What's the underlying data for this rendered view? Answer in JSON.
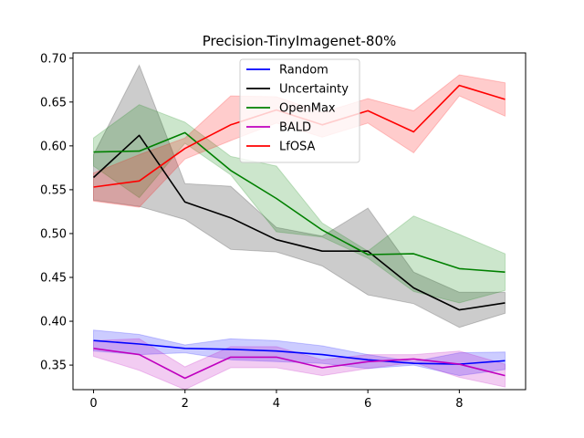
{
  "chart_data": {
    "type": "line",
    "title": "Precision-TinyImagenet-80%",
    "xlabel": "",
    "ylabel": "",
    "x": [
      0,
      1,
      2,
      3,
      4,
      5,
      6,
      7,
      8,
      9
    ],
    "xlim": [
      -0.45,
      9.45
    ],
    "ylim": [
      0.322,
      0.706
    ],
    "xticks": [
      0,
      2,
      4,
      6,
      8
    ],
    "yticks": [
      0.35,
      0.4,
      0.45,
      0.5,
      0.55,
      0.6,
      0.65,
      0.7
    ],
    "grid": false,
    "legend_position": "top-center",
    "series": [
      {
        "name": "Random",
        "color": "#0000ff",
        "values": [
          0.378,
          0.374,
          0.369,
          0.368,
          0.366,
          0.362,
          0.356,
          0.352,
          0.351,
          0.355
        ],
        "lower": [
          0.366,
          0.362,
          0.364,
          0.356,
          0.354,
          0.352,
          0.346,
          0.35,
          0.338,
          0.345
        ],
        "upper": [
          0.39,
          0.385,
          0.373,
          0.38,
          0.378,
          0.372,
          0.362,
          0.354,
          0.364,
          0.365
        ]
      },
      {
        "name": "Uncertainty",
        "color": "#000000",
        "values": [
          0.564,
          0.612,
          0.536,
          0.518,
          0.493,
          0.48,
          0.48,
          0.438,
          0.413,
          0.421
        ],
        "lower": [
          0.538,
          0.531,
          0.516,
          0.482,
          0.479,
          0.463,
          0.43,
          0.42,
          0.393,
          0.409
        ],
        "upper": [
          0.59,
          0.692,
          0.557,
          0.554,
          0.507,
          0.497,
          0.529,
          0.456,
          0.433,
          0.433
        ]
      },
      {
        "name": "OpenMax",
        "color": "#008000",
        "values": [
          0.593,
          0.594,
          0.615,
          0.572,
          0.54,
          0.504,
          0.476,
          0.477,
          0.46,
          0.456
        ],
        "lower": [
          0.577,
          0.541,
          0.603,
          0.567,
          0.502,
          0.496,
          0.472,
          0.434,
          0.421,
          0.435
        ],
        "upper": [
          0.609,
          0.647,
          0.627,
          0.588,
          0.577,
          0.512,
          0.48,
          0.52,
          0.499,
          0.477
        ]
      },
      {
        "name": "BALD",
        "color": "#bf00bf",
        "values": [
          0.369,
          0.362,
          0.335,
          0.359,
          0.359,
          0.347,
          0.354,
          0.357,
          0.351,
          0.338
        ],
        "lower": [
          0.36,
          0.344,
          0.322,
          0.347,
          0.347,
          0.338,
          0.346,
          0.353,
          0.336,
          0.325
        ],
        "upper": [
          0.378,
          0.38,
          0.348,
          0.371,
          0.371,
          0.356,
          0.362,
          0.362,
          0.366,
          0.351
        ]
      },
      {
        "name": "LfOSA",
        "color": "#ff0000",
        "values": [
          0.553,
          0.56,
          0.597,
          0.624,
          0.641,
          0.624,
          0.64,
          0.616,
          0.669,
          0.653
        ],
        "lower": [
          0.537,
          0.53,
          0.585,
          0.606,
          0.626,
          0.61,
          0.626,
          0.592,
          0.657,
          0.634
        ],
        "upper": [
          0.569,
          0.59,
          0.609,
          0.657,
          0.656,
          0.638,
          0.654,
          0.64,
          0.681,
          0.672
        ]
      }
    ]
  }
}
